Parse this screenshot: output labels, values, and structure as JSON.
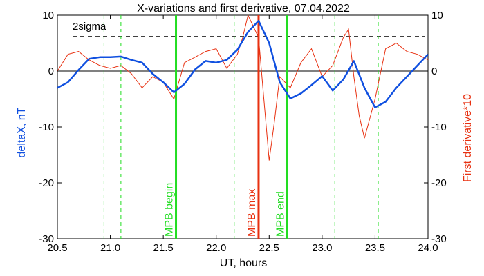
{
  "chart_data": {
    "type": "line",
    "title": "X-variations and first derivative, 07.04.2022",
    "xlabel": "UT, hours",
    "ylabel_left": "deltaX, nT",
    "ylabel_right": "First derivative*10",
    "xlim": [
      20.5,
      24.0
    ],
    "ylim": [
      -30,
      10
    ],
    "xticks": [
      "20.5",
      "21.0",
      "21.5",
      "22.0",
      "22.5",
      "23.0",
      "23.5",
      "24.0"
    ],
    "xtick_values": [
      20.5,
      21.0,
      21.5,
      22.0,
      22.5,
      23.0,
      23.5,
      24.0
    ],
    "yticks": [
      "10",
      "0",
      "-10",
      "-20",
      "-30"
    ],
    "ytick_values": [
      10,
      0,
      -10,
      -20,
      -30
    ],
    "threshold": {
      "label": "2sigma",
      "value": 6.2
    },
    "zero_line": 0,
    "dashed_markers": [
      20.94,
      21.1,
      22.17,
      23.12,
      23.53
    ],
    "event_lines": [
      {
        "label": "MPB begin",
        "x": 21.62,
        "color": "#22dd22"
      },
      {
        "label": "MPB max",
        "x": 22.4,
        "color": "#e83010"
      },
      {
        "label": "MPB end",
        "x": 22.67,
        "color": "#22dd22"
      }
    ],
    "colors": {
      "deltaX": "#1050e0",
      "derivative": "#e83010",
      "left_label": "#1050e0",
      "right_label": "#e83010",
      "dashed_markers": "#22dd22"
    },
    "series": [
      {
        "role": "deltaX",
        "x": [
          20.5,
          20.6,
          20.7,
          20.8,
          20.9,
          21.0,
          21.1,
          21.2,
          21.3,
          21.4,
          21.5,
          21.6,
          21.7,
          21.8,
          21.9,
          22.0,
          22.1,
          22.2,
          22.3,
          22.4,
          22.5,
          22.6,
          22.7,
          22.8,
          22.9,
          23.0,
          23.1,
          23.2,
          23.3,
          23.4,
          23.5,
          23.6,
          23.7,
          23.8,
          23.9,
          24.0
        ],
        "values": [
          -3.0,
          -2.0,
          0.2,
          2.2,
          2.5,
          2.5,
          2.6,
          2.0,
          1.5,
          -0.5,
          -2.0,
          -3.8,
          -2.3,
          0.3,
          1.8,
          1.5,
          2.0,
          3.8,
          7.0,
          9.0,
          5.0,
          -2.0,
          -4.9,
          -4.0,
          -2.5,
          -0.9,
          -3.5,
          -1.5,
          1.8,
          -3.0,
          -6.5,
          -5.5,
          -3.0,
          -1.0,
          1.0,
          3.0
        ]
      },
      {
        "role": "derivative",
        "x": [
          20.5,
          20.6,
          20.7,
          20.8,
          20.9,
          21.0,
          21.1,
          21.2,
          21.3,
          21.4,
          21.5,
          21.6,
          21.7,
          21.8,
          21.9,
          22.0,
          22.1,
          22.2,
          22.25,
          22.3,
          22.35,
          22.4,
          22.45,
          22.5,
          22.55,
          22.6,
          22.7,
          22.8,
          22.9,
          23.0,
          23.1,
          23.2,
          23.25,
          23.3,
          23.35,
          23.4,
          23.5,
          23.6,
          23.7,
          23.8,
          23.9,
          24.0
        ],
        "values": [
          0.0,
          3.0,
          3.5,
          2.0,
          1.0,
          0.5,
          1.0,
          -0.5,
          -3.0,
          -1.0,
          -2.0,
          -5.0,
          1.5,
          2.5,
          3.5,
          4.0,
          0.5,
          3.0,
          6.0,
          10.0,
          8.0,
          6.0,
          -5.0,
          -16.0,
          -9.0,
          -1.0,
          -3.0,
          1.5,
          4.0,
          -1.0,
          1.0,
          6.0,
          7.5,
          -1.0,
          -8.0,
          -12.0,
          -5.0,
          4.0,
          5.0,
          3.5,
          3.0,
          2.0
        ]
      }
    ]
  }
}
